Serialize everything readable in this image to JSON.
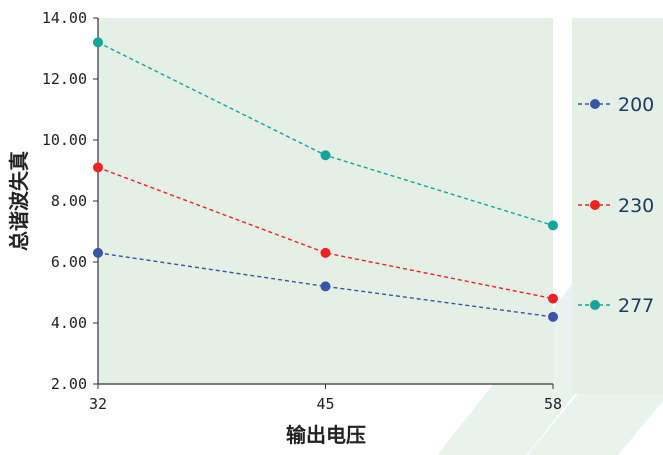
{
  "chart_data": {
    "type": "line",
    "title": "",
    "xlabel": "输出电压",
    "ylabel": "总谐波失真",
    "categories": [
      "32",
      "45",
      "58"
    ],
    "y_ticks": [
      "2.00",
      "4.00",
      "6.00",
      "8.00",
      "10.00",
      "12.00",
      "14.00"
    ],
    "ylim": [
      2,
      14
    ],
    "grid": false,
    "legend_position": "right",
    "line_style": "dashed",
    "plot_background": "#e4efe6",
    "series": [
      {
        "name": "200",
        "color": "#3a55a4",
        "values": [
          6.3,
          5.2,
          4.2
        ]
      },
      {
        "name": "230",
        "color": "#ee2222",
        "values": [
          9.1,
          6.3,
          4.8
        ]
      },
      {
        "name": "277",
        "color": "#14a59a",
        "values": [
          13.2,
          9.5,
          7.2
        ]
      }
    ]
  }
}
